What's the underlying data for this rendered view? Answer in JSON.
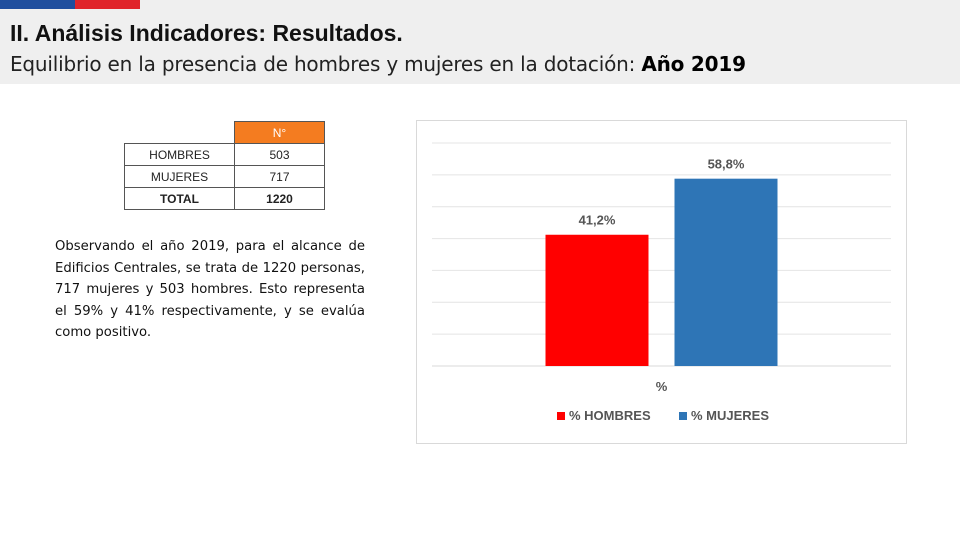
{
  "header": {
    "title": "II. Análisis Indicadores: Resultados.",
    "subtitle": "Equilibrio en la presencia de hombres y mujeres en la dotación:",
    "subtitle_year": "Año 2019",
    "flag_colors": [
      "#1f4e9e",
      "#e0252b"
    ]
  },
  "table": {
    "header": "N°",
    "rows": [
      {
        "label": "HOMBRES",
        "value": "503"
      },
      {
        "label": "MUJERES",
        "value": "717"
      }
    ],
    "total": {
      "label": "TOTAL",
      "value": "1220"
    },
    "header_color": "#f47c20"
  },
  "description": "Observando el año 2019, para el alcance de Edificios Centrales, se trata de 1220 personas, 717 mujeres y 503 hombres. Esto representa el 59% y 41% respectivamente, y se evalúa como positivo.",
  "chart_data": {
    "type": "bar",
    "categories": [
      "%"
    ],
    "series": [
      {
        "name": "% HOMBRES",
        "values": [
          41.2
        ],
        "label": "41,2%",
        "color": "#ff0000"
      },
      {
        "name": "% MUJERES",
        "values": [
          58.8
        ],
        "label": "58,8%",
        "color": "#2e75b6"
      }
    ],
    "xlabel": "%",
    "ylim": [
      0,
      70
    ],
    "grid": true,
    "legend": "bottom"
  }
}
